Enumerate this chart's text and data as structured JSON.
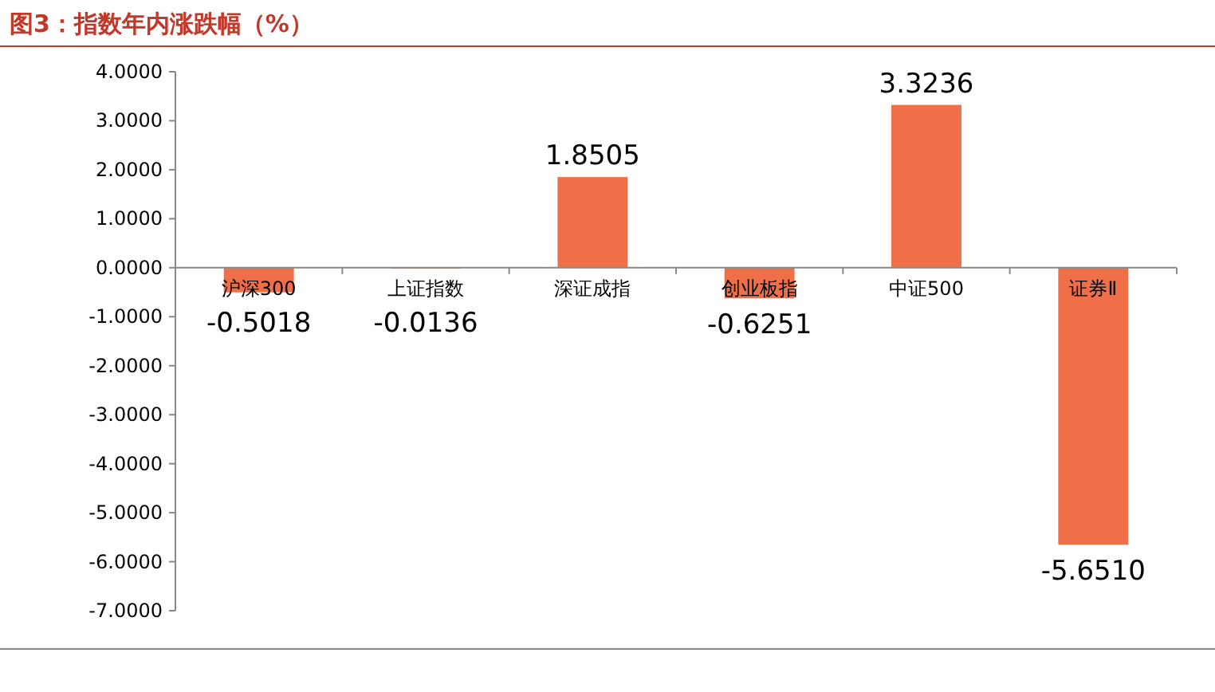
{
  "chart_data": {
    "type": "bar",
    "title": "图3：指数年内涨跌幅（%）",
    "categories": [
      "沪深300",
      "上证指数",
      "深证成指",
      "创业板指",
      "中证500",
      "证券Ⅱ"
    ],
    "values": [
      -0.5018,
      -0.0136,
      1.8505,
      -0.6251,
      3.3236,
      -5.651
    ],
    "value_labels": [
      "-0.5018",
      "-0.0136",
      "1.8505",
      "-0.6251",
      "3.3236",
      "-5.6510"
    ],
    "color": "#ef7048",
    "ylim": [
      -7,
      4
    ],
    "yticks": [
      {
        "value": 4,
        "label": "4.0000"
      },
      {
        "value": 3,
        "label": "3.0000"
      },
      {
        "value": 2,
        "label": "2.0000"
      },
      {
        "value": 1,
        "label": "1.0000"
      },
      {
        "value": 0,
        "label": "0.0000"
      },
      {
        "value": -1,
        "label": "-1.0000"
      },
      {
        "value": -2,
        "label": "-2.0000"
      },
      {
        "value": -3,
        "label": "-3.0000"
      },
      {
        "value": -4,
        "label": "-4.0000"
      },
      {
        "value": -5,
        "label": "-5.0000"
      },
      {
        "value": -6,
        "label": "-6.0000"
      },
      {
        "value": -7,
        "label": "-7.0000"
      }
    ]
  }
}
